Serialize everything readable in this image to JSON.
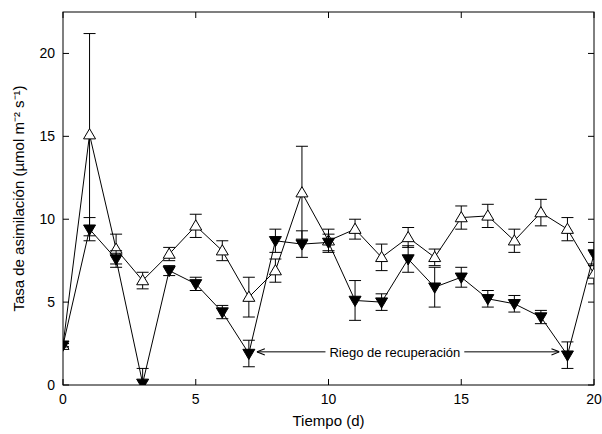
{
  "chart_data": {
    "type": "line",
    "x_label": "Tiempo (d)",
    "y_label": "Tasa de asimilación (µmol m⁻² s⁻¹)",
    "x": [
      0,
      1,
      2,
      3,
      4,
      5,
      6,
      7,
      8,
      9,
      10,
      11,
      12,
      13,
      14,
      15,
      16,
      17,
      18,
      19,
      20
    ],
    "xlim": [
      0,
      20
    ],
    "xticks": [
      0,
      5,
      10,
      15,
      20
    ],
    "ylim": [
      0,
      22.5
    ],
    "yticks": [
      0,
      5,
      10,
      15,
      20
    ],
    "series": [
      {
        "color": "#000000",
        "marker": "triangle-up-open",
        "line_style": "solid",
        "values": [
          2.4,
          15.1,
          8.2,
          6.3,
          7.9,
          9.6,
          8.1,
          5.3,
          6.9,
          11.6,
          8.7,
          9.4,
          7.7,
          8.9,
          7.7,
          10.1,
          10.2,
          8.7,
          10.4,
          9.4,
          6.7
        ],
        "errors": [
          0.1,
          6.1,
          0.9,
          0.5,
          0.4,
          0.7,
          0.6,
          1.2,
          0.7,
          2.8,
          0.7,
          0.6,
          0.8,
          0.6,
          0.5,
          0.7,
          0.7,
          0.7,
          0.8,
          0.7,
          0.6
        ]
      },
      {
        "color": "#000000",
        "marker": "triangle-down-filled",
        "line_style": "solid",
        "values": [
          2.4,
          9.4,
          7.6,
          0.1,
          6.9,
          6.1,
          4.4,
          1.9,
          8.7,
          8.5,
          8.6,
          5.1,
          5.0,
          7.6,
          5.9,
          6.5,
          5.2,
          4.9,
          4.1,
          1.8,
          7.9
        ],
        "errors": [
          0.1,
          0.7,
          0.5,
          0.9,
          0.3,
          0.4,
          0.4,
          0.8,
          0.7,
          0.8,
          0.5,
          1.2,
          0.5,
          0.8,
          1.2,
          0.6,
          0.5,
          0.5,
          0.4,
          0.8,
          0.7
        ]
      }
    ],
    "annotations": [
      {
        "text": "Riego de recuperación",
        "x": 12.5,
        "y": 2,
        "arrow_x": [
          7.3,
          18.7
        ]
      }
    ]
  }
}
